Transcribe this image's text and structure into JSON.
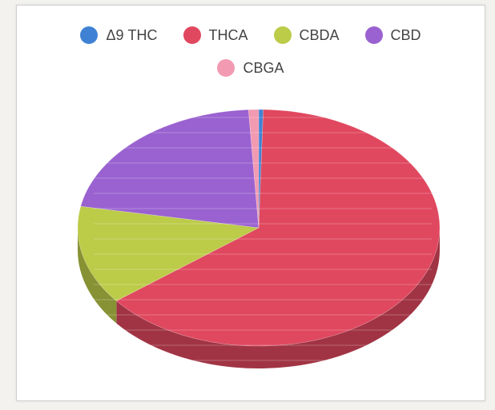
{
  "chart_data": {
    "type": "pie",
    "style": "3d",
    "legend_position": "top",
    "categories": [
      "Δ9 THC",
      "THCA",
      "CBDA",
      "CBD",
      "CBGA"
    ],
    "values": [
      0.4,
      64.0,
      13.5,
      21.2,
      0.9
    ],
    "colors": [
      "#3f82d4",
      "#e0485f",
      "#bccb48",
      "#9a62d0",
      "#f29ab2"
    ]
  }
}
